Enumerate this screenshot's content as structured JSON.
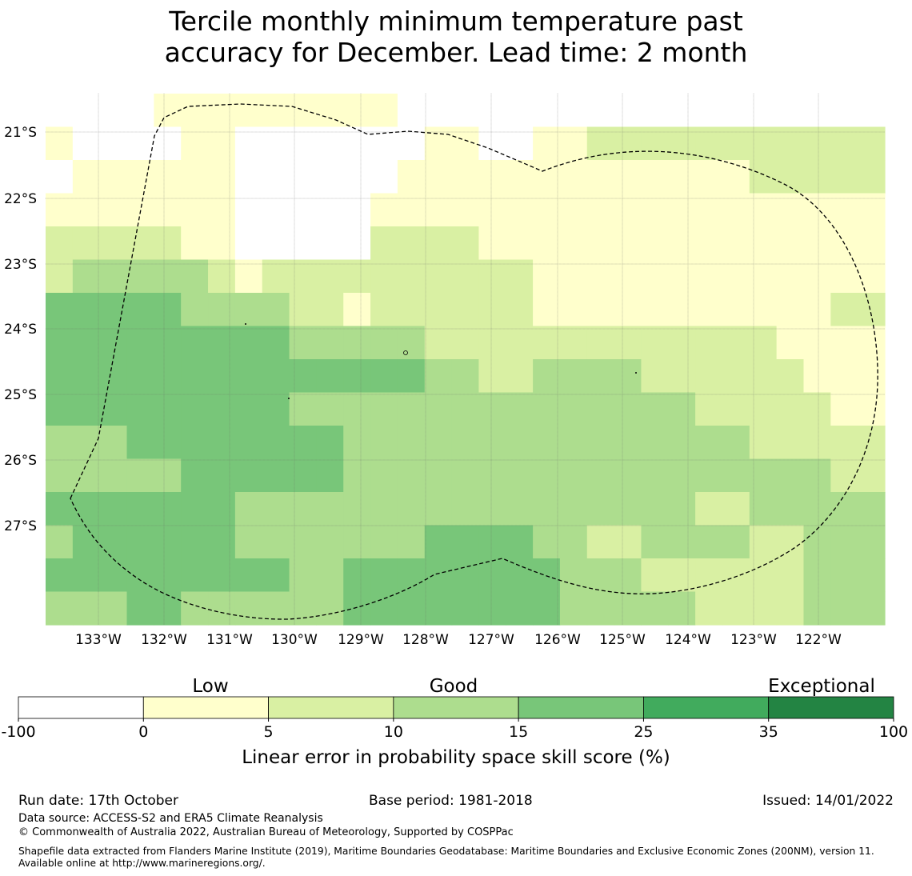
{
  "title": {
    "line1": "Tercile monthly minimum temperature past",
    "line2": "accuracy for December. Lead time: 2 month"
  },
  "map": {
    "lat_labels": [
      "21°S",
      "22°S",
      "23°S",
      "24°S",
      "25°S",
      "26°S",
      "27°S"
    ],
    "lon_labels": [
      "133°W",
      "132°W",
      "131°W",
      "130°W",
      "129°W",
      "128°W",
      "127°W",
      "126°W",
      "125°W",
      "124°W",
      "123°W",
      "122°W"
    ],
    "boundary_line": "EEZ boundary (dashed)",
    "cell_values": [
      "w",
      "w",
      "w",
      "w",
      "y",
      "y",
      "y",
      "y",
      "y",
      "y",
      "y",
      "y",
      "y",
      "g",
      "g",
      "g",
      "g",
      "g",
      "g",
      "g",
      "g",
      "g",
      "g",
      "g",
      "g",
      "g",
      "g",
      "g",
      "g",
      "g",
      "g",
      "y",
      "w",
      "w",
      "w",
      "w",
      "y",
      "y",
      "w",
      "w",
      "w",
      "w",
      "w",
      "w",
      "w",
      "y",
      "y",
      "w",
      "w",
      "y",
      "y",
      "l",
      "l",
      "l",
      "l",
      "l",
      "l",
      "l",
      "l",
      "l",
      "l",
      "l",
      "w",
      "y",
      "y",
      "y",
      "y",
      "y",
      "y",
      "w",
      "w",
      "w",
      "w",
      "w",
      "w",
      "y",
      "y",
      "y",
      "y",
      "y",
      "y",
      "y",
      "y",
      "y",
      "y",
      "y",
      "y",
      "y",
      "l",
      "l",
      "l",
      "l",
      "l",
      "y",
      "y",
      "y",
      "y",
      "y",
      "y",
      "y",
      "w",
      "w",
      "w",
      "w",
      "w",
      "y",
      "y",
      "y",
      "y",
      "y",
      "y",
      "y",
      "y",
      "y",
      "y",
      "y",
      "y",
      "y",
      "y",
      "y",
      "y",
      "y",
      "y",
      "y",
      "l",
      "l",
      "l",
      "l",
      "l",
      "y",
      "y",
      "w",
      "w",
      "w",
      "w",
      "w",
      "l",
      "l",
      "l",
      "l",
      "y",
      "y",
      "y",
      "y",
      "y",
      "y",
      "y",
      "y",
      "y",
      "y",
      "y",
      "y",
      "y",
      "y",
      "y",
      "l",
      "m",
      "m",
      "m",
      "m",
      "m",
      "l",
      "y",
      "l",
      "l",
      "l",
      "l",
      "l",
      "l",
      "l",
      "l",
      "l",
      "l",
      "y",
      "y",
      "y",
      "y",
      "y",
      "y",
      "y",
      "y",
      "y",
      "y",
      "y",
      "y",
      "y",
      "d",
      "d",
      "d",
      "d",
      "d",
      "m",
      "m",
      "m",
      "m",
      "l",
      "l",
      "y",
      "l",
      "l",
      "l",
      "l",
      "l",
      "l",
      "y",
      "y",
      "y",
      "y",
      "y",
      "y",
      "y",
      "y",
      "y",
      "y",
      "y",
      "l",
      "l",
      "d",
      "d",
      "d",
      "d",
      "d",
      "d",
      "d",
      "d",
      "d",
      "m",
      "m",
      "m",
      "m",
      "m",
      "l",
      "l",
      "l",
      "l",
      "l",
      "l",
      "l",
      "l",
      "l",
      "l",
      "l",
      "l",
      "l",
      "y",
      "y",
      "y",
      "y",
      "d",
      "d",
      "d",
      "d",
      "d",
      "d",
      "d",
      "d",
      "d",
      "d",
      "d",
      "d",
      "d",
      "d",
      "m",
      "m",
      "l",
      "l",
      "m",
      "m",
      "m",
      "m",
      "l",
      "l",
      "l",
      "l",
      "l",
      "l",
      "y",
      "y",
      "y",
      "d",
      "d",
      "d",
      "d",
      "d",
      "d",
      "d",
      "d",
      "d",
      "m",
      "m",
      "m",
      "m",
      "m",
      "m",
      "m",
      "m",
      "m",
      "m",
      "m",
      "m",
      "m",
      "m",
      "m",
      "l",
      "l",
      "l",
      "l",
      "l",
      "y",
      "y",
      "m",
      "m",
      "m",
      "d",
      "d",
      "d",
      "d",
      "d",
      "d",
      "d",
      "d",
      "m",
      "m",
      "m",
      "m",
      "m",
      "m",
      "m",
      "m",
      "m",
      "m",
      "m",
      "m",
      "m",
      "m",
      "m",
      "l",
      "l",
      "l",
      "l",
      "l",
      "m",
      "m",
      "m",
      "m",
      "m",
      "d",
      "d",
      "d",
      "d",
      "d",
      "d",
      "m",
      "m",
      "m",
      "m",
      "m",
      "m",
      "m",
      "m",
      "m",
      "m",
      "m",
      "m",
      "m",
      "m",
      "m",
      "m",
      "m",
      "m",
      "l",
      "l",
      "d",
      "d",
      "d",
      "d",
      "d",
      "d",
      "d",
      "m",
      "m",
      "m",
      "m",
      "m",
      "m",
      "m",
      "m",
      "m",
      "m",
      "m",
      "m",
      "m",
      "m",
      "m",
      "m",
      "m",
      "l",
      "l",
      "m",
      "m",
      "m",
      "m",
      "m",
      "m",
      "d",
      "d",
      "d",
      "d",
      "d",
      "d",
      "m",
      "m",
      "m",
      "m",
      "m",
      "m",
      "m",
      "d",
      "d",
      "d",
      "d",
      "m",
      "m",
      "l",
      "l",
      "m",
      "m",
      "m",
      "m",
      "l",
      "l",
      "m",
      "m",
      "m",
      "d",
      "d",
      "d",
      "d",
      "d",
      "d",
      "d",
      "d",
      "d",
      "m",
      "m",
      "d",
      "d",
      "d",
      "d",
      "d",
      "d",
      "d",
      "d",
      "m",
      "m",
      "m",
      "l",
      "l",
      "l",
      "l",
      "l",
      "l",
      "m",
      "m",
      "m",
      "m",
      "m",
      "m",
      "d",
      "d",
      "m",
      "m",
      "m",
      "m",
      "m",
      "m",
      "d",
      "d",
      "d",
      "d",
      "d",
      "d",
      "d",
      "d",
      "m",
      "m",
      "m",
      "m",
      "m",
      "l",
      "l",
      "l",
      "l",
      "m",
      "m",
      "m"
    ]
  },
  "colorbar": {
    "category_labels": [
      "Low",
      "Good",
      "Exceptional"
    ],
    "ticks": [
      "-100",
      "0",
      "5",
      "10",
      "15",
      "25",
      "35",
      "100"
    ],
    "tick_values": [
      -100,
      0,
      5,
      10,
      15,
      25,
      35,
      100
    ],
    "colors": [
      "#ffffff",
      "#ffffcc",
      "#d9f0a3",
      "#addd8e",
      "#78c679",
      "#41ab5d",
      "#238443"
    ],
    "cell_colors": {
      "w": "#ffffff",
      "y": "#ffffcc",
      "l": "#d9f0a3",
      "m": "#addd8e",
      "d": "#78c679"
    },
    "label": "Linear error in probability space skill score (%)"
  },
  "footer": {
    "run_date": "Run date: 17th October",
    "base_period": "Base period: 1981-2018",
    "issued": "Issued: 14/01/2022",
    "data_source": "Data source: ACCESS-S2 and ERA5 Climate Reanalysis",
    "copyright": "© Commonwealth of Australia 2022, Australian Bureau of Meteorology, Supported by COSPPac",
    "shapefile": "Shapefile data extracted from Flanders Marine Institute (2019), Maritime Boundaries Geodatabase: Maritime Boundaries and Exclusive Economic Zones (200NM), version 11. Available online at http://www.marineregions.org/."
  }
}
